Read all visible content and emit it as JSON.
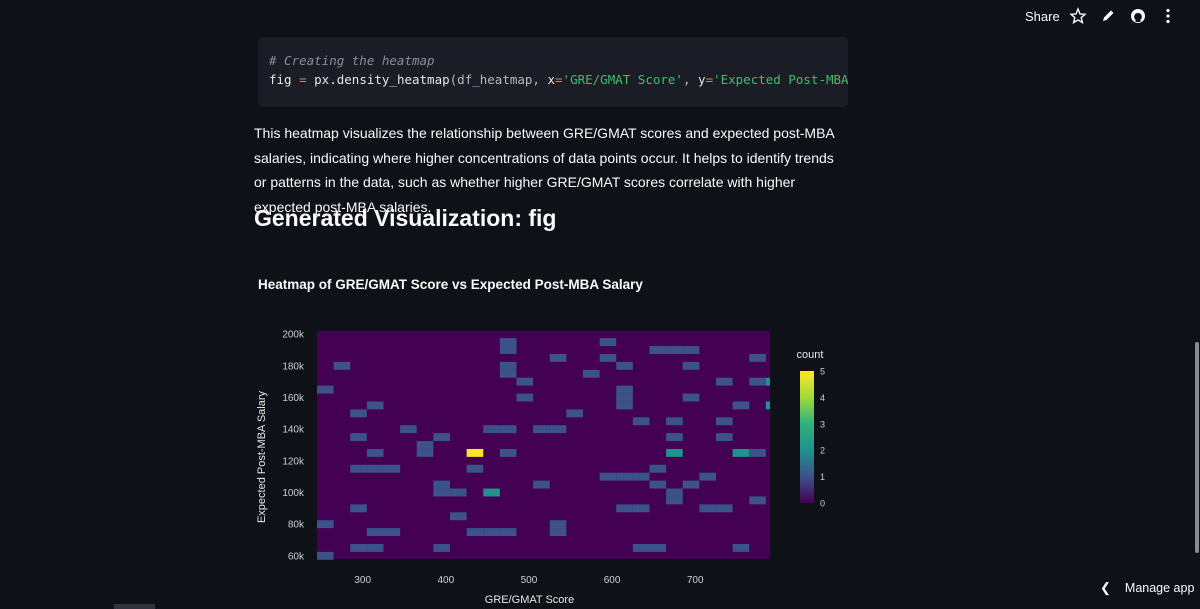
{
  "topbar": {
    "share_label": "Share",
    "icons": [
      "star-icon",
      "edit-pencil-icon",
      "github-icon",
      "more-vertical-icon"
    ]
  },
  "code": {
    "comment": "# Creating the heatmap",
    "line2_a": "fig",
    "line2_eq": " = ",
    "line2_b": "px",
    "line2_c": ".density_heatmap",
    "line2_d": "(df_heatmap, ",
    "line2_x": "x",
    "line2_eq2": "=",
    "line2_xv": "'GRE/GMAT Score'",
    "line2_sep": ", ",
    "line2_y": "y",
    "line2_eq3": "=",
    "line2_yv": "'Expected Post-MBA Sala"
  },
  "paragraph": "This heatmap visualizes the relationship between GRE/GMAT scores and expected post-MBA salaries, indicating where higher concentrations of data points occur. It helps to identify trends or patterns in the data, such as whether higher GRE/GMAT scores correlate with higher expected post-MBA salaries.",
  "heading": "Generated Visualization: fig",
  "manage_app": {
    "label": "Manage app"
  },
  "chart_data": {
    "type": "heatmap",
    "title": "Heatmap of GRE/GMAT Score vs Expected Post-MBA Salary",
    "xlabel": "GRE/GMAT Score",
    "ylabel": "Expected Post-MBA Salary",
    "xlim": [
      245,
      790
    ],
    "ylim": [
      58000,
      202000
    ],
    "x_ticks": [
      300,
      400,
      500,
      600,
      700
    ],
    "y_ticks": [
      60000,
      80000,
      100000,
      120000,
      140000,
      160000,
      180000,
      200000
    ],
    "y_tick_labels": [
      "60k",
      "80k",
      "100k",
      "120k",
      "140k",
      "160k",
      "180k",
      "200k"
    ],
    "colorbar": {
      "title": "count",
      "min": 0,
      "max": 5,
      "ticks": [
        0,
        1,
        2,
        3,
        4,
        5
      ]
    },
    "bin_width_x": 20,
    "bin_height_y": 5000,
    "cells": [
      {
        "x": 255,
        "y": 60000,
        "count": 1
      },
      {
        "x": 255,
        "y": 80000,
        "count": 1
      },
      {
        "x": 255,
        "y": 165000,
        "count": 1
      },
      {
        "x": 275,
        "y": 180000,
        "count": 1
      },
      {
        "x": 295,
        "y": 150000,
        "count": 1
      },
      {
        "x": 295,
        "y": 135000,
        "count": 1
      },
      {
        "x": 295,
        "y": 115000,
        "count": 1
      },
      {
        "x": 295,
        "y": 90000,
        "count": 1
      },
      {
        "x": 295,
        "y": 65000,
        "count": 1
      },
      {
        "x": 315,
        "y": 155000,
        "count": 1
      },
      {
        "x": 315,
        "y": 125000,
        "count": 1
      },
      {
        "x": 315,
        "y": 115000,
        "count": 1
      },
      {
        "x": 315,
        "y": 75000,
        "count": 1
      },
      {
        "x": 315,
        "y": 65000,
        "count": 1
      },
      {
        "x": 335,
        "y": 115000,
        "count": 1
      },
      {
        "x": 335,
        "y": 75000,
        "count": 1
      },
      {
        "x": 355,
        "y": 140000,
        "count": 1
      },
      {
        "x": 375,
        "y": 130000,
        "count": 1
      },
      {
        "x": 375,
        "y": 125000,
        "count": 1
      },
      {
        "x": 395,
        "y": 135000,
        "count": 1
      },
      {
        "x": 395,
        "y": 105000,
        "count": 1
      },
      {
        "x": 395,
        "y": 100000,
        "count": 1
      },
      {
        "x": 395,
        "y": 65000,
        "count": 1
      },
      {
        "x": 415,
        "y": 85000,
        "count": 1
      },
      {
        "x": 415,
        "y": 100000,
        "count": 1
      },
      {
        "x": 435,
        "y": 125000,
        "count": 5
      },
      {
        "x": 435,
        "y": 115000,
        "count": 1
      },
      {
        "x": 435,
        "y": 75000,
        "count": 1
      },
      {
        "x": 455,
        "y": 140000,
        "count": 1
      },
      {
        "x": 455,
        "y": 100000,
        "count": 2
      },
      {
        "x": 455,
        "y": 75000,
        "count": 1
      },
      {
        "x": 475,
        "y": 195000,
        "count": 1
      },
      {
        "x": 475,
        "y": 190000,
        "count": 1
      },
      {
        "x": 475,
        "y": 140000,
        "count": 1
      },
      {
        "x": 475,
        "y": 125000,
        "count": 1
      },
      {
        "x": 475,
        "y": 75000,
        "count": 1
      },
      {
        "x": 475,
        "y": 180000,
        "count": 1
      },
      {
        "x": 475,
        "y": 175000,
        "count": 1
      },
      {
        "x": 495,
        "y": 170000,
        "count": 1
      },
      {
        "x": 495,
        "y": 160000,
        "count": 1
      },
      {
        "x": 515,
        "y": 140000,
        "count": 1
      },
      {
        "x": 515,
        "y": 105000,
        "count": 1
      },
      {
        "x": 535,
        "y": 185000,
        "count": 1
      },
      {
        "x": 535,
        "y": 140000,
        "count": 1
      },
      {
        "x": 535,
        "y": 80000,
        "count": 1
      },
      {
        "x": 535,
        "y": 75000,
        "count": 1
      },
      {
        "x": 555,
        "y": 150000,
        "count": 1
      },
      {
        "x": 575,
        "y": 175000,
        "count": 1
      },
      {
        "x": 595,
        "y": 195000,
        "count": 1
      },
      {
        "x": 595,
        "y": 185000,
        "count": 1
      },
      {
        "x": 595,
        "y": 110000,
        "count": 1
      },
      {
        "x": 615,
        "y": 180000,
        "count": 1
      },
      {
        "x": 615,
        "y": 165000,
        "count": 1
      },
      {
        "x": 615,
        "y": 160000,
        "count": 1
      },
      {
        "x": 615,
        "y": 155000,
        "count": 1
      },
      {
        "x": 615,
        "y": 110000,
        "count": 1
      },
      {
        "x": 615,
        "y": 90000,
        "count": 1
      },
      {
        "x": 635,
        "y": 145000,
        "count": 1
      },
      {
        "x": 635,
        "y": 110000,
        "count": 1
      },
      {
        "x": 635,
        "y": 90000,
        "count": 1
      },
      {
        "x": 635,
        "y": 65000,
        "count": 1
      },
      {
        "x": 655,
        "y": 190000,
        "count": 1
      },
      {
        "x": 655,
        "y": 115000,
        "count": 1
      },
      {
        "x": 655,
        "y": 105000,
        "count": 1
      },
      {
        "x": 655,
        "y": 65000,
        "count": 1
      },
      {
        "x": 675,
        "y": 190000,
        "count": 1
      },
      {
        "x": 675,
        "y": 145000,
        "count": 1
      },
      {
        "x": 675,
        "y": 135000,
        "count": 1
      },
      {
        "x": 675,
        "y": 125000,
        "count": 2
      },
      {
        "x": 675,
        "y": 100000,
        "count": 1
      },
      {
        "x": 675,
        "y": 95000,
        "count": 1
      },
      {
        "x": 695,
        "y": 190000,
        "count": 1
      },
      {
        "x": 695,
        "y": 180000,
        "count": 1
      },
      {
        "x": 695,
        "y": 160000,
        "count": 1
      },
      {
        "x": 695,
        "y": 105000,
        "count": 1
      },
      {
        "x": 715,
        "y": 110000,
        "count": 1
      },
      {
        "x": 715,
        "y": 90000,
        "count": 1
      },
      {
        "x": 735,
        "y": 170000,
        "count": 1
      },
      {
        "x": 735,
        "y": 145000,
        "count": 1
      },
      {
        "x": 735,
        "y": 135000,
        "count": 1
      },
      {
        "x": 735,
        "y": 90000,
        "count": 1
      },
      {
        "x": 755,
        "y": 155000,
        "count": 1
      },
      {
        "x": 755,
        "y": 125000,
        "count": 2
      },
      {
        "x": 755,
        "y": 65000,
        "count": 1
      },
      {
        "x": 775,
        "y": 185000,
        "count": 1
      },
      {
        "x": 775,
        "y": 170000,
        "count": 1
      },
      {
        "x": 775,
        "y": 125000,
        "count": 1
      },
      {
        "x": 775,
        "y": 95000,
        "count": 1
      },
      {
        "x": 795,
        "y": 170000,
        "count": 2
      },
      {
        "x": 795,
        "y": 155000,
        "count": 2
      }
    ]
  }
}
